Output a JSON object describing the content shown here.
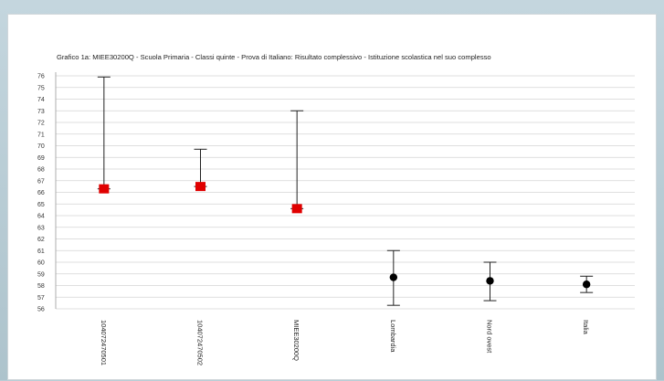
{
  "chart_data": {
    "type": "error-bar",
    "title": "Grafico 1a: MIEE30200Q - Scuola Primaria - Classi quinte - Prova di Italiano: Risultato complessivo - Istituzione scolastica nel suo complesso",
    "xlabel": "",
    "ylabel": "",
    "ylim": [
      56,
      76
    ],
    "yticks": [
      56,
      57,
      58,
      59,
      60,
      61,
      62,
      63,
      64,
      65,
      66,
      67,
      68,
      69,
      70,
      71,
      72,
      73,
      74,
      75,
      76
    ],
    "grid": true,
    "categories": [
      "104072470501",
      "104072470502",
      "MIEE30200Q",
      "Lombardia",
      "Nord ovest",
      "Italia"
    ],
    "series": [
      {
        "marker": "square",
        "color": "#e00000",
        "points": [
          {
            "category": "104072470501",
            "value": 66.3,
            "lower": 66.3,
            "upper": 75.9
          },
          {
            "category": "104072470502",
            "value": 66.5,
            "lower": 66.5,
            "upper": 69.7
          },
          {
            "category": "MIEE30200Q",
            "value": 64.6,
            "lower": 64.6,
            "upper": 73.0
          }
        ]
      },
      {
        "marker": "circle",
        "color": "#000000",
        "points": [
          {
            "category": "Lombardia",
            "value": 58.7,
            "lower": 56.3,
            "upper": 61.0
          },
          {
            "category": "Nord ovest",
            "value": 58.4,
            "lower": 56.7,
            "upper": 60.0
          },
          {
            "category": "Italia",
            "value": 58.1,
            "lower": 57.4,
            "upper": 58.8
          }
        ]
      }
    ]
  }
}
